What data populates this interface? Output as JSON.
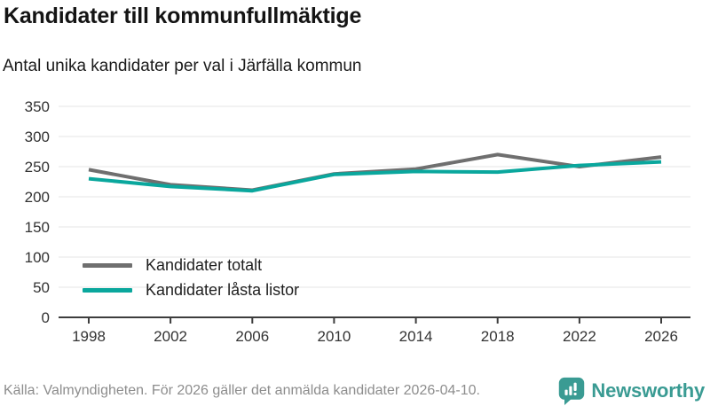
{
  "header": {
    "title": "Kandidater till kommunfullmäktige",
    "subtitle": "Antal unika kandidater per val i Järfälla kommun"
  },
  "chart_data": {
    "type": "line",
    "title": "Kandidater till kommunfullmäktige",
    "subtitle": "Antal unika kandidater per val i Järfälla kommun",
    "categories": [
      "1998",
      "2002",
      "2006",
      "2010",
      "2014",
      "2018",
      "2022",
      "2026"
    ],
    "series": [
      {
        "name": "Kandidater totalt",
        "color": "#6f6f6f",
        "values": [
          245,
          220,
          211,
          238,
          246,
          270,
          250,
          266
        ]
      },
      {
        "name": "Kandidater låsta listor",
        "color": "#0aa79d",
        "values": [
          230,
          217,
          210,
          237,
          242,
          241,
          252,
          258
        ]
      }
    ],
    "xlabel": "",
    "ylabel": "",
    "ylim": [
      0,
      350
    ],
    "yticks": [
      0,
      50,
      100,
      150,
      200,
      250,
      300,
      350
    ],
    "grid": true,
    "legend_position": "inside-bottom-left",
    "colors": {
      "gridline": "#e4e4e4",
      "axis": "#3d3d3d",
      "tick_label": "#333333"
    }
  },
  "footer": {
    "source": "Källa: Valmyndigheten. För 2026 gäller det anmälda kandidater 2026-04-10."
  },
  "brand": {
    "name": "Newsworthy",
    "color": "#3a9b93"
  }
}
